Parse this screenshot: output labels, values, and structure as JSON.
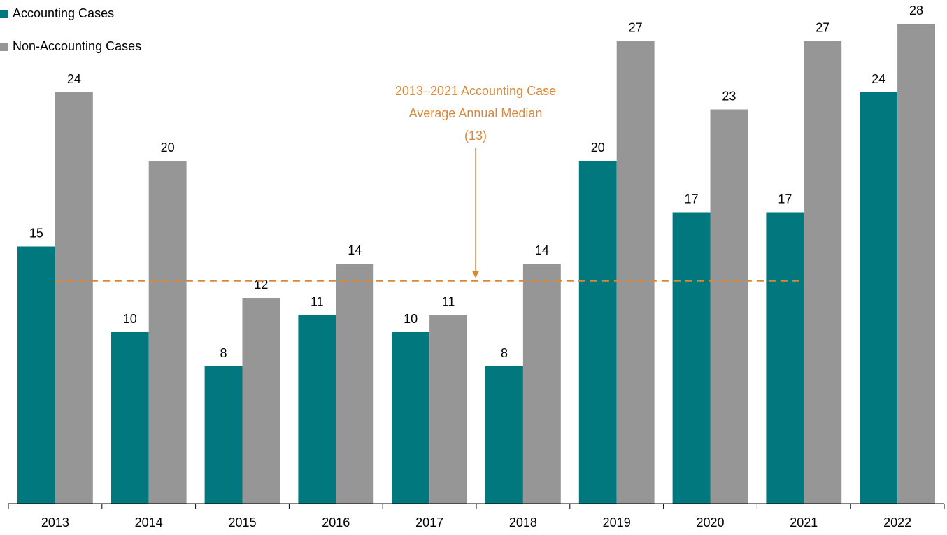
{
  "chart_data": {
    "type": "bar",
    "categories": [
      "2013",
      "2014",
      "2015",
      "2016",
      "2017",
      "2018",
      "2019",
      "2020",
      "2021",
      "2022"
    ],
    "series": [
      {
        "name": "Accounting Cases",
        "color": "#00787e",
        "values": [
          15,
          10,
          8,
          11,
          10,
          8,
          20,
          17,
          17,
          24
        ]
      },
      {
        "name": "Non-Accounting Cases",
        "color": "#969696",
        "values": [
          24,
          20,
          12,
          14,
          11,
          14,
          27,
          23,
          27,
          28
        ]
      }
    ],
    "ylim": [
      0,
      29
    ],
    "legend": "top-left",
    "annotation": {
      "lines": [
        "2013–2021 Accounting Case",
        "Average Annual Median"
      ],
      "median": {
        "value": 13,
        "label": "(13)"
      },
      "color": "#d9883a"
    }
  }
}
